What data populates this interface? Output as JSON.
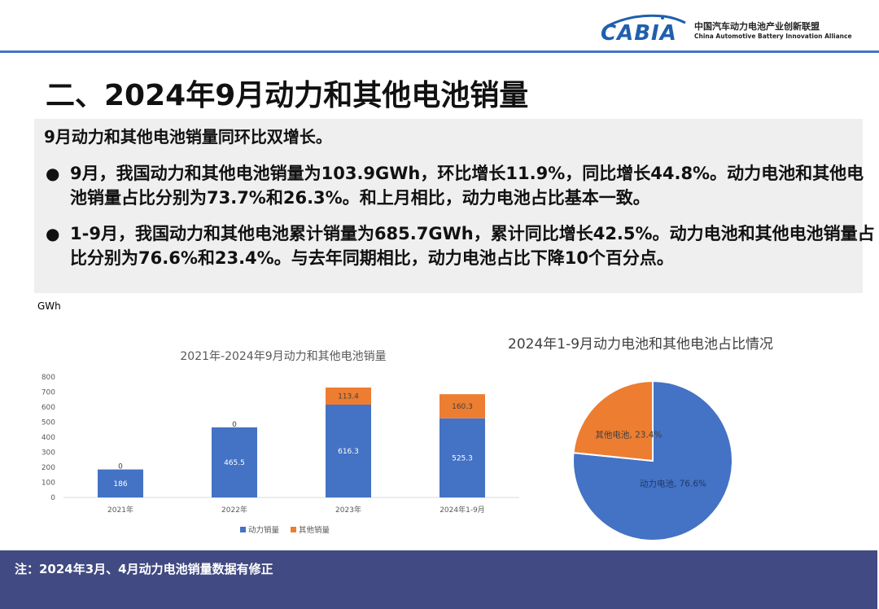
{
  "header": {
    "logo_text": "CABIA",
    "org_name_cn": "中国汽车动力电池产业创新联盟",
    "org_name_en": "China Automotive Battery Innovation Alliance"
  },
  "title": "二、2024年9月动力和其他电池销量",
  "summary": {
    "headline": "9月动力和其他电池销量同环比双增长。",
    "bullets": [
      "9月，我国动力和其他电池销量为103.9GWh，环比增长11.9%，同比增长44.8%。动力电池和其他电池销量占比分别为73.7%和26.3%。和上月相比，动力电池占比基本一致。",
      "1-9月，我国动力和其他电池累计销量为685.7GWh，累计同比增长42.5%。动力电池和其他电池销量占比分别为76.6%和23.4%。与去年同期相比，动力电池占比下降10个百分点。"
    ]
  },
  "chart_data": [
    {
      "type": "bar",
      "stacked": true,
      "title": "2021年-2024年9月动力和其他电池销量",
      "ylabel": "GWh",
      "xlabel": "",
      "categories": [
        "2021年",
        "2022年",
        "2023年",
        "2024年1-9月"
      ],
      "series": [
        {
          "name": "动力销量",
          "values": [
            186,
            465.5,
            616.3,
            525.3
          ],
          "color": "#4472c4"
        },
        {
          "name": "其他销量",
          "values": [
            0,
            0,
            113.4,
            160.3
          ],
          "color": "#ed7d31"
        }
      ],
      "value_labels": [
        [
          "186",
          "465.5",
          "616.3",
          "525.3"
        ],
        [
          "0",
          "0",
          "113.4",
          "160.3"
        ]
      ],
      "yticks": [
        0,
        100,
        200,
        300,
        400,
        500,
        600,
        700,
        800
      ],
      "ylim": [
        0,
        800
      ],
      "grid": false,
      "legend_position": "bottom"
    },
    {
      "type": "pie",
      "title": "2024年1-9月动力电池和其他电池占比情况",
      "slices": [
        {
          "label": "动力电池",
          "value": 76.6,
          "display": "动力电池, 76.6%",
          "color": "#4472c4"
        },
        {
          "label": "其他电池",
          "value": 23.4,
          "display": "其他电池, 23.4%",
          "color": "#ed7d31"
        }
      ]
    }
  ],
  "footer": {
    "note": "注：2024年3月、4月动力电池销量数据有修正"
  }
}
